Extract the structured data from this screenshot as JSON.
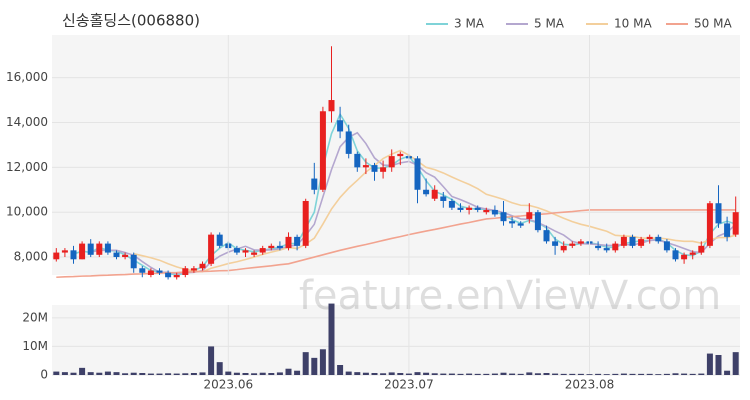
{
  "chart_data": [
    {
      "type": "candlestick",
      "title": "신송홀딩스(006880)",
      "watermark": "feature.enViewV.com",
      "legend_position": "top-right",
      "grid": true,
      "up_color": "#e8201f",
      "down_color": "#1565c0",
      "ylim": [
        7200,
        17900
      ],
      "yticks": [
        {
          "value": 8000,
          "label": "8,000"
        },
        {
          "value": 10000,
          "label": "10,000"
        },
        {
          "value": 12000,
          "label": "12,000"
        },
        {
          "value": 14000,
          "label": "14,000"
        },
        {
          "value": 16000,
          "label": "16,000"
        }
      ],
      "xlim": [
        -0.5,
        79.5
      ],
      "open": [
        7900,
        8200,
        8300,
        7900,
        8600,
        8100,
        8600,
        8200,
        8000,
        8100,
        7500,
        7200,
        7400,
        7300,
        7100,
        7200,
        7400,
        7500,
        7700,
        9000,
        8600,
        8400,
        8200,
        8100,
        8200,
        8400,
        8500,
        8400,
        8900,
        8500,
        11500,
        11000,
        14500,
        14100,
        13600,
        12600,
        12000,
        12100,
        11800,
        12000,
        12500,
        12500,
        12400,
        11000,
        10600,
        10700,
        10500,
        10200,
        10100,
        10200,
        10000,
        10100,
        10000,
        9600,
        9500,
        9700,
        10000,
        9200,
        8700,
        8300,
        8500,
        8600,
        8700,
        8500,
        8400,
        8300,
        8500,
        8900,
        8500,
        8800,
        8900,
        8700,
        8300,
        7900,
        8100,
        8200,
        8500,
        10400,
        9500,
        9000
      ],
      "high": [
        8400,
        8400,
        8500,
        8700,
        8800,
        8700,
        8700,
        8300,
        8200,
        8200,
        7600,
        7500,
        7500,
        7400,
        7300,
        7600,
        7600,
        7800,
        9100,
        9100,
        8700,
        8500,
        8400,
        8300,
        8500,
        8600,
        8700,
        9100,
        9000,
        10600,
        12200,
        14700,
        17400,
        14700,
        13900,
        12700,
        12400,
        12200,
        12300,
        12800,
        12700,
        12600,
        12500,
        11500,
        11200,
        10900,
        10600,
        10400,
        10300,
        10300,
        10200,
        10300,
        10500,
        9800,
        9600,
        10400,
        10100,
        9400,
        8900,
        8700,
        8700,
        8800,
        8900,
        8700,
        8600,
        8700,
        9000,
        9000,
        8900,
        9000,
        9000,
        8800,
        8400,
        8200,
        8300,
        8700,
        10500,
        11200,
        9800,
        10700
      ],
      "low": [
        7800,
        8000,
        7700,
        7900,
        8000,
        8000,
        8100,
        7900,
        7900,
        7300,
        7100,
        7100,
        7200,
        7000,
        7000,
        7100,
        7300,
        7400,
        7600,
        8400,
        8300,
        8100,
        8000,
        8000,
        8100,
        8300,
        8300,
        8300,
        8300,
        8400,
        10800,
        10900,
        14000,
        13300,
        12400,
        11800,
        11700,
        11400,
        11500,
        11800,
        12100,
        12300,
        10400,
        10700,
        10500,
        10200,
        10100,
        10000,
        9900,
        10000,
        9900,
        9800,
        9400,
        9300,
        9300,
        9500,
        9100,
        8600,
        8100,
        8200,
        8400,
        8500,
        8500,
        8300,
        8200,
        8200,
        8400,
        8400,
        8400,
        8600,
        8600,
        8200,
        7800,
        7700,
        7900,
        8100,
        8400,
        9300,
        8700,
        8900
      ],
      "close": [
        8200,
        8300,
        7900,
        8600,
        8100,
        8600,
        8200,
        8000,
        8100,
        7500,
        7300,
        7400,
        7300,
        7100,
        7200,
        7500,
        7500,
        7700,
        9000,
        8500,
        8400,
        8200,
        8300,
        8200,
        8400,
        8500,
        8400,
        8900,
        8500,
        10500,
        11000,
        14500,
        15000,
        13600,
        12600,
        12000,
        12100,
        11800,
        12000,
        12500,
        12600,
        12400,
        11000,
        10800,
        11000,
        10500,
        10200,
        10100,
        10200,
        10100,
        10100,
        9900,
        9600,
        9500,
        9400,
        10000,
        9200,
        8700,
        8500,
        8500,
        8600,
        8700,
        8600,
        8400,
        8300,
        8600,
        8900,
        8500,
        8800,
        8900,
        8700,
        8300,
        7900,
        8100,
        8200,
        8500,
        10400,
        9500,
        8900,
        10000
      ],
      "series": [
        {
          "name": "3 MA",
          "color": "#7fd3d8",
          "values": [
            null,
            null,
            8133,
            8267,
            8200,
            8433,
            8300,
            8267,
            8100,
            7867,
            7633,
            7400,
            7333,
            7267,
            7200,
            7267,
            7400,
            7567,
            8067,
            8400,
            8633,
            8367,
            8300,
            8233,
            8300,
            8367,
            8433,
            8600,
            8600,
            9300,
            10000,
            12000,
            13500,
            14367,
            13733,
            12733,
            12233,
            11967,
            11967,
            12100,
            12367,
            12500,
            12000,
            11400,
            10933,
            10767,
            10567,
            10267,
            10167,
            10133,
            10133,
            10033,
            9867,
            9667,
            9500,
            9633,
            9533,
            9300,
            8800,
            8567,
            8533,
            8600,
            8633,
            8567,
            8433,
            8433,
            8600,
            8667,
            8733,
            8733,
            8800,
            8633,
            8300,
            8100,
            8067,
            8267,
            9033,
            9467,
            9600,
            9467
          ]
        },
        {
          "name": "5 MA",
          "color": "#b4a7cf",
          "values": [
            null,
            null,
            null,
            null,
            8220,
            8300,
            8300,
            8300,
            8200,
            8080,
            7800,
            7540,
            7320,
            7320,
            7260,
            7300,
            7320,
            7400,
            7780,
            8040,
            8220,
            8360,
            8480,
            8320,
            8300,
            8320,
            8360,
            8480,
            8540,
            8960,
            9460,
            10680,
            11900,
            12920,
            13340,
            13540,
            13060,
            12420,
            12100,
            12080,
            12200,
            12260,
            12100,
            11760,
            11560,
            11140,
            10700,
            10560,
            10400,
            10220,
            10140,
            10080,
            9980,
            9840,
            9700,
            9680,
            9540,
            9360,
            9160,
            8980,
            8700,
            8600,
            8580,
            8560,
            8520,
            8520,
            8560,
            8540,
            8620,
            8740,
            8760,
            8640,
            8520,
            8380,
            8240,
            8200,
            8620,
            8940,
            9100,
            9460
          ]
        },
        {
          "name": "10 MA",
          "color": "#f3cf9c",
          "values": [
            null,
            null,
            null,
            null,
            null,
            null,
            null,
            null,
            null,
            8150,
            8060,
            7970,
            7860,
            7700,
            7560,
            7450,
            7380,
            7350,
            7500,
            7600,
            7710,
            7790,
            7890,
            8000,
            8120,
            8220,
            8310,
            8430,
            8380,
            8580,
            8840,
            9470,
            10140,
            10660,
            11070,
            11420,
            11790,
            12080,
            12390,
            12590,
            12750,
            12540,
            12280,
            12000,
            11900,
            11750,
            11570,
            11400,
            11240,
            11050,
            10800,
            10690,
            10570,
            10420,
            10310,
            10300,
            10200,
            10060,
            9890,
            9730,
            9580,
            9460,
            9370,
            9260,
            9150,
            8970,
            8940,
            8920,
            8850,
            8840,
            8850,
            8810,
            8740,
            8700,
            8700,
            8620,
            8770,
            8870,
            8870,
            8980
          ]
        },
        {
          "name": "50 MA",
          "color": "#f2a38f",
          "values": [
            7100,
            7120,
            7130,
            7150,
            7160,
            7180,
            7190,
            7210,
            7220,
            7240,
            7250,
            7270,
            7280,
            7300,
            7310,
            7330,
            7340,
            7360,
            7370,
            7390,
            7400,
            7440,
            7490,
            7530,
            7570,
            7610,
            7660,
            7700,
            7800,
            7900,
            8000,
            8100,
            8200,
            8300,
            8390,
            8480,
            8560,
            8650,
            8740,
            8830,
            8910,
            9000,
            9080,
            9160,
            9230,
            9310,
            9390,
            9470,
            9540,
            9620,
            9700,
            9730,
            9770,
            9800,
            9830,
            9870,
            9900,
            9930,
            9970,
            10000,
            10030,
            10070,
            10100,
            10100,
            10100,
            10100,
            10100,
            10100,
            10100,
            10100,
            10100,
            10100,
            10100,
            10100,
            10100,
            10100,
            10100,
            10100,
            10100,
            10100
          ]
        }
      ]
    },
    {
      "type": "bar",
      "grid": true,
      "color": "#3e4068",
      "ylim": [
        0,
        24500000
      ],
      "yticks": [
        0,
        {
          "value": 10000000,
          "label": "10M"
        },
        {
          "value": 20000000,
          "label": "20M"
        }
      ],
      "xlim": [
        -0.5,
        79.5
      ],
      "xticks": [
        {
          "value": 20,
          "label": "2023.06"
        },
        {
          "value": 41,
          "label": "2023.07"
        },
        {
          "value": 62,
          "label": "2023.08"
        }
      ],
      "values": [
        1200000,
        1000000,
        800000,
        2500000,
        1000000,
        800000,
        1200000,
        1000000,
        600000,
        800000,
        700000,
        500000,
        500000,
        600000,
        500000,
        600000,
        700000,
        900000,
        10000000,
        4500000,
        1200000,
        800000,
        700000,
        600000,
        800000,
        700000,
        900000,
        2200000,
        1500000,
        8000000,
        6000000,
        9000000,
        25000000,
        3500000,
        1200000,
        1000000,
        800000,
        700000,
        600000,
        900000,
        700000,
        500000,
        1000000,
        800000,
        600000,
        500000,
        500000,
        400000,
        500000,
        400000,
        400000,
        500000,
        800000,
        500000,
        400000,
        900000,
        600000,
        700000,
        500000,
        400000,
        400000,
        400000,
        300000,
        400000,
        300000,
        400000,
        500000,
        400000,
        400000,
        400000,
        300000,
        400000,
        600000,
        500000,
        400000,
        500000,
        7500000,
        7000000,
        1500000,
        8000000
      ]
    }
  ]
}
